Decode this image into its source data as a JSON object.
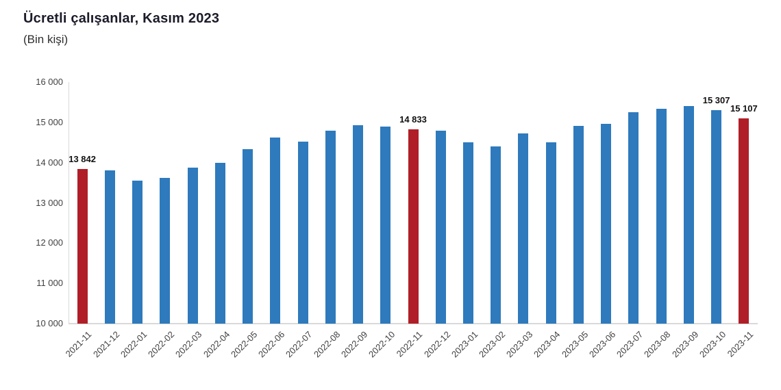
{
  "chart_data": {
    "type": "bar",
    "title": "Ücretli çalışanlar, Kasım 2023",
    "subtitle": "(Bin kişi)",
    "categories": [
      "2021-11",
      "2021-12",
      "2022-01",
      "2022-02",
      "2022-03",
      "2022-04",
      "2022-05",
      "2022-06",
      "2022-07",
      "2022-08",
      "2022-09",
      "2022-10",
      "2022-11",
      "2022-12",
      "2023-01",
      "2023-02",
      "2023-03",
      "2023-04",
      "2023-05",
      "2023-06",
      "2023-07",
      "2023-08",
      "2023-09",
      "2023-10",
      "2023-11"
    ],
    "values": [
      13842,
      13800,
      13560,
      13620,
      13870,
      14000,
      14330,
      14620,
      14520,
      14790,
      14930,
      14890,
      14833,
      14790,
      14510,
      14410,
      14720,
      14500,
      14920,
      14960,
      15250,
      15340,
      15410,
      15307,
      15107
    ],
    "highlighted_indices": [
      0,
      12,
      24
    ],
    "labeled_points": [
      {
        "index": 0,
        "text": "13 842"
      },
      {
        "index": 12,
        "text": "14 833"
      },
      {
        "index": 23,
        "text": "15 307"
      },
      {
        "index": 24,
        "text": "15 107"
      }
    ],
    "ylim": [
      10000,
      16000
    ],
    "ytick_labels": [
      "10 000",
      "11 000",
      "12 000",
      "13 000",
      "14 000",
      "15 000",
      "16 000"
    ],
    "xlabel": "",
    "ylabel": "",
    "grid": "off",
    "legend": "none",
    "colors": {
      "bar": "#2E7ABD",
      "highlight": "#B01E28"
    }
  }
}
